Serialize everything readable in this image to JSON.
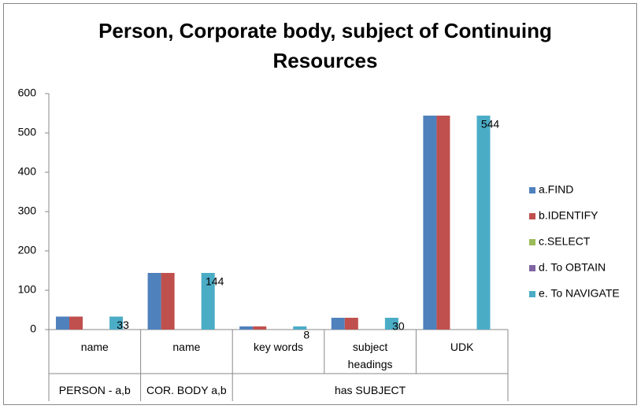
{
  "chart_data": {
    "type": "bar",
    "title": "Person, Corporate body, subject of Continuing Resources",
    "categories": [
      "name",
      "name",
      "key words",
      "subject headings",
      "UDK"
    ],
    "groups": [
      {
        "label": "PERSON - a,b",
        "count": 1
      },
      {
        "label": "COR. BODY a,b",
        "count": 1
      },
      {
        "label": "has SUBJECT",
        "count": 3
      }
    ],
    "series": [
      {
        "name": "a.FIND",
        "color": "#4f81bd",
        "values": [
          33,
          144,
          8,
          30,
          544
        ]
      },
      {
        "name": "b.IDENTIFY",
        "color": "#c0504d",
        "values": [
          33,
          144,
          8,
          30,
          544
        ]
      },
      {
        "name": "c.SELECT",
        "color": "#9bbb59",
        "values": [
          0,
          0,
          0,
          0,
          0
        ]
      },
      {
        "name": "d. To OBTAIN",
        "color": "#8064a2",
        "values": [
          0,
          0,
          0,
          0,
          0
        ]
      },
      {
        "name": "e. To NAVIGATE",
        "color": "#4bacc6",
        "values": [
          33,
          144,
          8,
          30,
          544
        ],
        "data_labels": true
      }
    ],
    "ylim": [
      0,
      600
    ],
    "yticks": [
      0,
      100,
      200,
      300,
      400,
      500,
      600
    ],
    "grid": false,
    "legend": "right"
  }
}
